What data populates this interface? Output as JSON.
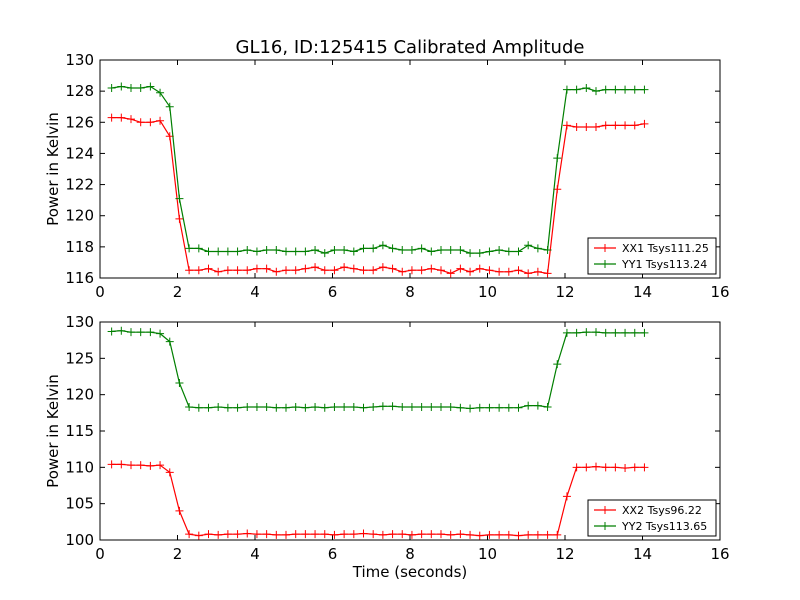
{
  "figure": {
    "title": "GL16, ID:125415 Calibrated Amplitude"
  },
  "colors": {
    "xx": "#ff0000",
    "yy": "#007f00",
    "axis": "#000000"
  },
  "chart_data": [
    {
      "type": "line",
      "title": "GL16, ID:125415 Calibrated Amplitude",
      "xlabel": "",
      "ylabel": "Power in Kelvin",
      "xlim": [
        0,
        16
      ],
      "ylim": [
        116,
        130
      ],
      "xticks": [
        "0",
        "2",
        "4",
        "6",
        "8",
        "10",
        "12",
        "14",
        "16"
      ],
      "yticks": [
        "116",
        "118",
        "120",
        "122",
        "124",
        "126",
        "128",
        "130"
      ],
      "grid": false,
      "legend_position": "lower-right",
      "x": [
        0.3,
        0.55,
        0.8,
        1.05,
        1.3,
        1.55,
        1.8,
        2.05,
        2.3,
        2.55,
        2.8,
        3.05,
        3.3,
        3.55,
        3.8,
        4.05,
        4.3,
        4.55,
        4.8,
        5.05,
        5.3,
        5.55,
        5.8,
        6.05,
        6.3,
        6.55,
        6.8,
        7.05,
        7.3,
        7.55,
        7.8,
        8.05,
        8.3,
        8.55,
        8.8,
        9.05,
        9.3,
        9.55,
        9.8,
        10.05,
        10.3,
        10.55,
        10.8,
        11.05,
        11.3,
        11.55,
        11.8,
        12.05,
        12.3,
        12.55,
        12.8,
        13.05,
        13.3,
        13.55,
        13.8,
        14.05
      ],
      "series": [
        {
          "name": "XX1 Tsys111.25",
          "color": "#ff0000",
          "values": [
            126.3,
            126.3,
            126.2,
            126.0,
            126.0,
            126.1,
            125.1,
            119.8,
            116.5,
            116.5,
            116.6,
            116.4,
            116.5,
            116.5,
            116.5,
            116.6,
            116.6,
            116.4,
            116.5,
            116.5,
            116.6,
            116.7,
            116.5,
            116.5,
            116.7,
            116.6,
            116.5,
            116.5,
            116.7,
            116.6,
            116.4,
            116.5,
            116.5,
            116.6,
            116.5,
            116.3,
            116.6,
            116.4,
            116.6,
            116.5,
            116.4,
            116.4,
            116.5,
            116.3,
            116.4,
            116.3,
            121.7,
            125.8,
            125.7,
            125.7,
            125.7,
            125.8,
            125.8,
            125.8,
            125.8,
            125.9
          ]
        },
        {
          "name": "YY1 Tsys113.24",
          "color": "#007f00",
          "values": [
            128.2,
            128.3,
            128.2,
            128.2,
            128.3,
            127.9,
            127.0,
            121.1,
            117.9,
            117.9,
            117.7,
            117.7,
            117.7,
            117.7,
            117.8,
            117.7,
            117.8,
            117.8,
            117.7,
            117.7,
            117.7,
            117.8,
            117.6,
            117.8,
            117.8,
            117.7,
            117.9,
            117.9,
            118.1,
            117.9,
            117.8,
            117.8,
            117.9,
            117.7,
            117.8,
            117.8,
            117.8,
            117.6,
            117.6,
            117.7,
            117.8,
            117.7,
            117.7,
            118.1,
            117.9,
            117.8,
            123.7,
            128.1,
            128.1,
            128.2,
            128.0,
            128.1,
            128.1,
            128.1,
            128.1,
            128.1
          ]
        }
      ]
    },
    {
      "type": "line",
      "title": "",
      "xlabel": "Time (seconds)",
      "ylabel": "Power in Kelvin",
      "xlim": [
        0,
        16
      ],
      "ylim": [
        100,
        130
      ],
      "xticks": [
        "0",
        "2",
        "4",
        "6",
        "8",
        "10",
        "12",
        "14",
        "16"
      ],
      "yticks": [
        "100",
        "105",
        "110",
        "115",
        "120",
        "125",
        "130"
      ],
      "grid": false,
      "legend_position": "lower-right",
      "x": [
        0.3,
        0.55,
        0.8,
        1.05,
        1.3,
        1.55,
        1.8,
        2.05,
        2.3,
        2.55,
        2.8,
        3.05,
        3.3,
        3.55,
        3.8,
        4.05,
        4.3,
        4.55,
        4.8,
        5.05,
        5.3,
        5.55,
        5.8,
        6.05,
        6.3,
        6.55,
        6.8,
        7.05,
        7.3,
        7.55,
        7.8,
        8.05,
        8.3,
        8.55,
        8.8,
        9.05,
        9.3,
        9.55,
        9.8,
        10.05,
        10.3,
        10.55,
        10.8,
        11.05,
        11.3,
        11.55,
        11.8,
        12.05,
        12.3,
        12.55,
        12.8,
        13.05,
        13.3,
        13.55,
        13.8,
        14.05
      ],
      "series": [
        {
          "name": "XX2 Tsys96.22",
          "color": "#ff0000",
          "values": [
            110.4,
            110.4,
            110.3,
            110.3,
            110.2,
            110.3,
            109.3,
            104.0,
            100.8,
            100.6,
            100.8,
            100.7,
            100.8,
            100.8,
            100.9,
            100.8,
            100.8,
            100.7,
            100.7,
            100.8,
            100.8,
            100.8,
            100.8,
            100.7,
            100.8,
            100.8,
            100.9,
            100.8,
            100.7,
            100.8,
            100.8,
            100.7,
            100.8,
            100.8,
            100.8,
            100.7,
            100.8,
            100.7,
            100.6,
            100.7,
            100.7,
            100.7,
            100.6,
            100.7,
            100.7,
            100.7,
            100.7,
            106.0,
            110.0,
            110.0,
            110.1,
            110.0,
            110.0,
            109.9,
            110.0,
            110.0
          ]
        },
        {
          "name": "YY2 Tsys113.65",
          "color": "#007f00",
          "values": [
            128.7,
            128.8,
            128.6,
            128.6,
            128.6,
            128.4,
            127.3,
            121.6,
            118.3,
            118.2,
            118.2,
            118.3,
            118.2,
            118.2,
            118.3,
            118.3,
            118.3,
            118.2,
            118.2,
            118.3,
            118.2,
            118.3,
            118.2,
            118.3,
            118.3,
            118.3,
            118.2,
            118.3,
            118.4,
            118.4,
            118.3,
            118.3,
            118.3,
            118.3,
            118.3,
            118.3,
            118.2,
            118.1,
            118.2,
            118.2,
            118.2,
            118.2,
            118.2,
            118.5,
            118.5,
            118.3,
            124.2,
            128.5,
            128.5,
            128.6,
            128.6,
            128.5,
            128.5,
            128.5,
            128.5,
            128.5
          ]
        }
      ]
    }
  ]
}
